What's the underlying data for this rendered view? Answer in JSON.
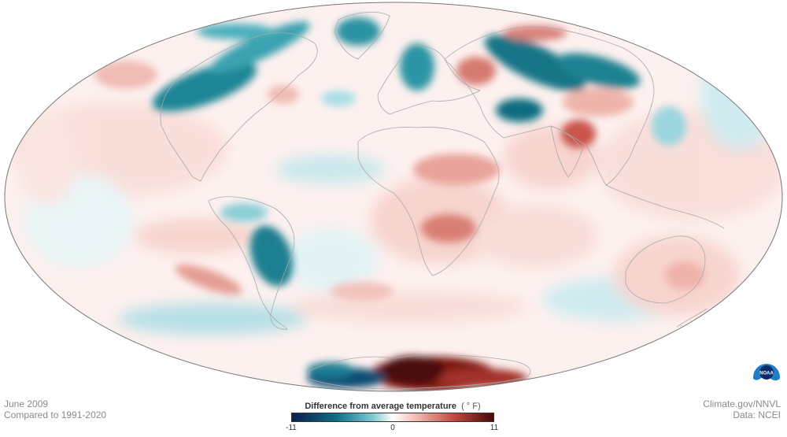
{
  "map": {
    "projection": "mollweide",
    "variable": "temperature anomaly"
  },
  "caption_left": {
    "month": "June 2009",
    "baseline": "Compared to 1991-2020"
  },
  "caption_right": {
    "source": "Climate.gov/NNVL",
    "data": "Data: NCEI"
  },
  "legend": {
    "title": "Difference from average temperature",
    "unit": "( ° F)",
    "min_label": "-11",
    "mid_label": "0",
    "max_label": "11",
    "colors": {
      "cold_extreme": "#0b1f4f",
      "cold": "#0e6e86",
      "neutral": "#ffffff",
      "warm": "#c24b43",
      "warm_extreme": "#4a0808"
    }
  },
  "logo": {
    "text": "NOAA",
    "icon": "noaa-logo-icon"
  }
}
